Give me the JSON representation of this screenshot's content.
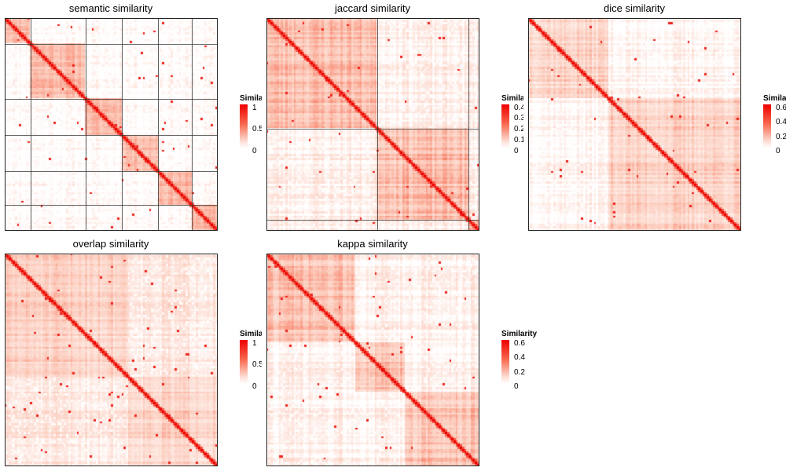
{
  "chart_data": [
    {
      "type": "heatmap",
      "title": "semantic similarity",
      "legend": {
        "title": "Simila",
        "ticks": [
          "1",
          "0.5",
          "0"
        ],
        "range": [
          0,
          1
        ]
      },
      "grid_lines": true,
      "diagonal": "red",
      "colors": {
        "high": "#ee0000",
        "low": "#ffffff"
      }
    },
    {
      "type": "heatmap",
      "title": "jaccard similarity",
      "legend": {
        "title": "Simila",
        "ticks": [
          "0.4",
          "0.3",
          "0.2",
          "0.1",
          "0"
        ],
        "range": [
          0,
          0.45
        ]
      },
      "grid_lines": true,
      "diagonal": "red",
      "colors": {
        "high": "#ee0000",
        "low": "#ffffff"
      }
    },
    {
      "type": "heatmap",
      "title": "dice similarity",
      "legend": {
        "title": "Simila",
        "ticks": [
          "0.6",
          "0.4",
          "0.2",
          "0"
        ],
        "range": [
          0,
          0.65
        ]
      },
      "grid_lines": false,
      "diagonal": "red",
      "colors": {
        "high": "#ee0000",
        "low": "#ffffff"
      }
    },
    {
      "type": "heatmap",
      "title": "overlap similarity",
      "legend": {
        "title": "Simila",
        "ticks": [
          "1",
          "0.5",
          "0"
        ],
        "range": [
          0,
          1
        ]
      },
      "grid_lines": false,
      "diagonal": "red",
      "colors": {
        "high": "#ee0000",
        "low": "#ffffff"
      }
    },
    {
      "type": "heatmap",
      "title": "kappa similarity",
      "legend": {
        "title": "Similarity",
        "ticks": [
          "0.6",
          "0.4",
          "0.2",
          "0"
        ],
        "range": [
          0,
          0.65
        ]
      },
      "grid_lines": false,
      "diagonal": "red",
      "colors": {
        "high": "#ee0000",
        "low": "#ffffff"
      }
    }
  ]
}
